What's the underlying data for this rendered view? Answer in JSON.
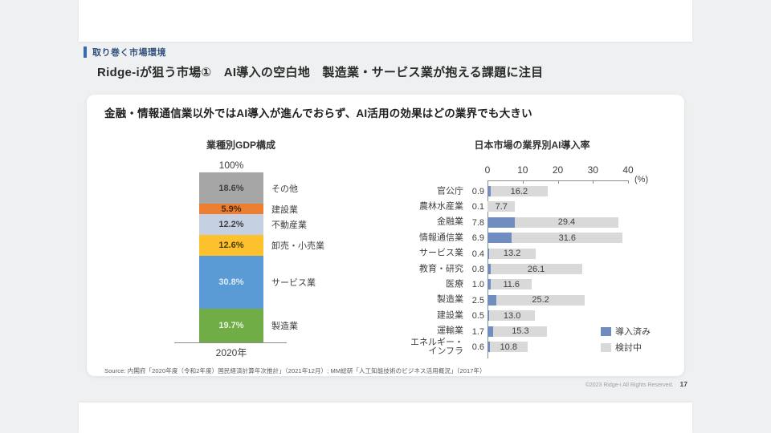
{
  "page": {
    "kicker": "取り巻く市場環境",
    "title": "Ridge-iが狙う市場①　AI導入の空白地　製造業・サービス業が抱える課題に注目",
    "subtitle": "金融・情報通信業以外ではAI導入が進んでおらず、AI活用の効果はどの業界でも大きい",
    "source": "Source:  内閣府「2020年度（令和2年度）国民経済計算年次推計」（2021年12月）;  MM総研「人工知能技術のビジネス活用概況」（2017年）",
    "footer_copyright": "©2023 Ridge-i All Rights Reserved.",
    "page_number": "17"
  },
  "chart_data": [
    {
      "type": "bar",
      "variant": "stacked-column",
      "title": "業種別GDP構成",
      "top_label": "100%",
      "x_category": "2020年",
      "unit": "%",
      "segments_top_to_bottom": [
        {
          "label": "その他",
          "value": 18.6,
          "color": "#a6a6a6",
          "text_color": "#3f3f3f"
        },
        {
          "label": "建設業",
          "value": 5.9,
          "color": "#ed7d31",
          "text_color": "#4a2c10"
        },
        {
          "label": "不動産業",
          "value": 12.2,
          "color": "#c5d0e2",
          "text_color": "#3f3f3f"
        },
        {
          "label": "卸売・小売業",
          "value": 12.6,
          "color": "#fcc12c",
          "text_color": "#4d3c08"
        },
        {
          "label": "サービス業",
          "value": 30.8,
          "color": "#5b9bd5",
          "text_color": "#dcEAf7"
        },
        {
          "label": "製造業",
          "value": 19.7,
          "color": "#70ad47",
          "text_color": "#e9f3e0"
        }
      ]
    },
    {
      "type": "bar",
      "variant": "horizontal-stacked",
      "title": "日本市場の業界別AI導入率",
      "unit": "(%)",
      "axis_ticks": [
        0,
        10,
        20,
        30,
        40
      ],
      "xlim": [
        0,
        40
      ],
      "grid": false,
      "legend_position": "bottom-right",
      "legend": [
        {
          "label": "導入済み",
          "color": "#6f8ebf"
        },
        {
          "label": "検討中",
          "color": "#d9d9d9"
        }
      ],
      "categories": [
        "官公庁",
        "農林水産業",
        "金融業",
        "情報通信業",
        "サービス業",
        "教育・研究",
        "医療",
        "製造業",
        "建設業",
        "運輸業",
        "エネルギー・\nインフラ"
      ],
      "series": [
        {
          "name": "導入済み",
          "color": "#6f8ebf",
          "values": [
            0.9,
            0.1,
            7.8,
            6.9,
            0.4,
            0.8,
            1.0,
            2.5,
            0.5,
            1.7,
            0.6
          ]
        },
        {
          "name": "検討中",
          "color": "#d9d9d9",
          "values": [
            16.2,
            7.7,
            29.4,
            31.6,
            13.2,
            26.1,
            11.6,
            25.2,
            13.0,
            15.3,
            10.8
          ]
        }
      ]
    }
  ]
}
